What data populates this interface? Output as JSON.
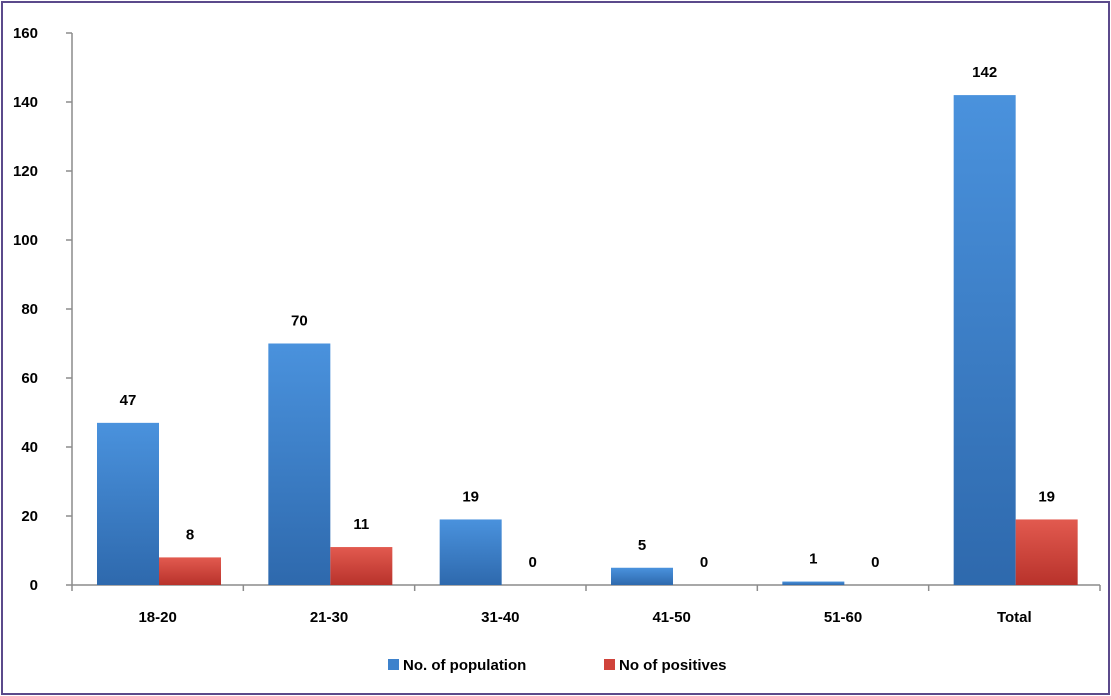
{
  "chart_data": {
    "type": "bar",
    "categories": [
      "18-20",
      "21-30",
      "31-40",
      "41-50",
      "51-60",
      "Total"
    ],
    "series": [
      {
        "name": "No. of population",
        "values": [
          47,
          70,
          19,
          5,
          1,
          142
        ],
        "color": "#3d82cc"
      },
      {
        "name": "No of positives",
        "values": [
          8,
          11,
          0,
          0,
          0,
          19
        ],
        "color": "#d0433b"
      }
    ],
    "ylim": [
      0,
      160
    ],
    "yticks": [
      0,
      20,
      40,
      60,
      80,
      100,
      120,
      140,
      160
    ],
    "grid": false,
    "legend": "bottom-center",
    "border_color": "#5b4a8b"
  }
}
